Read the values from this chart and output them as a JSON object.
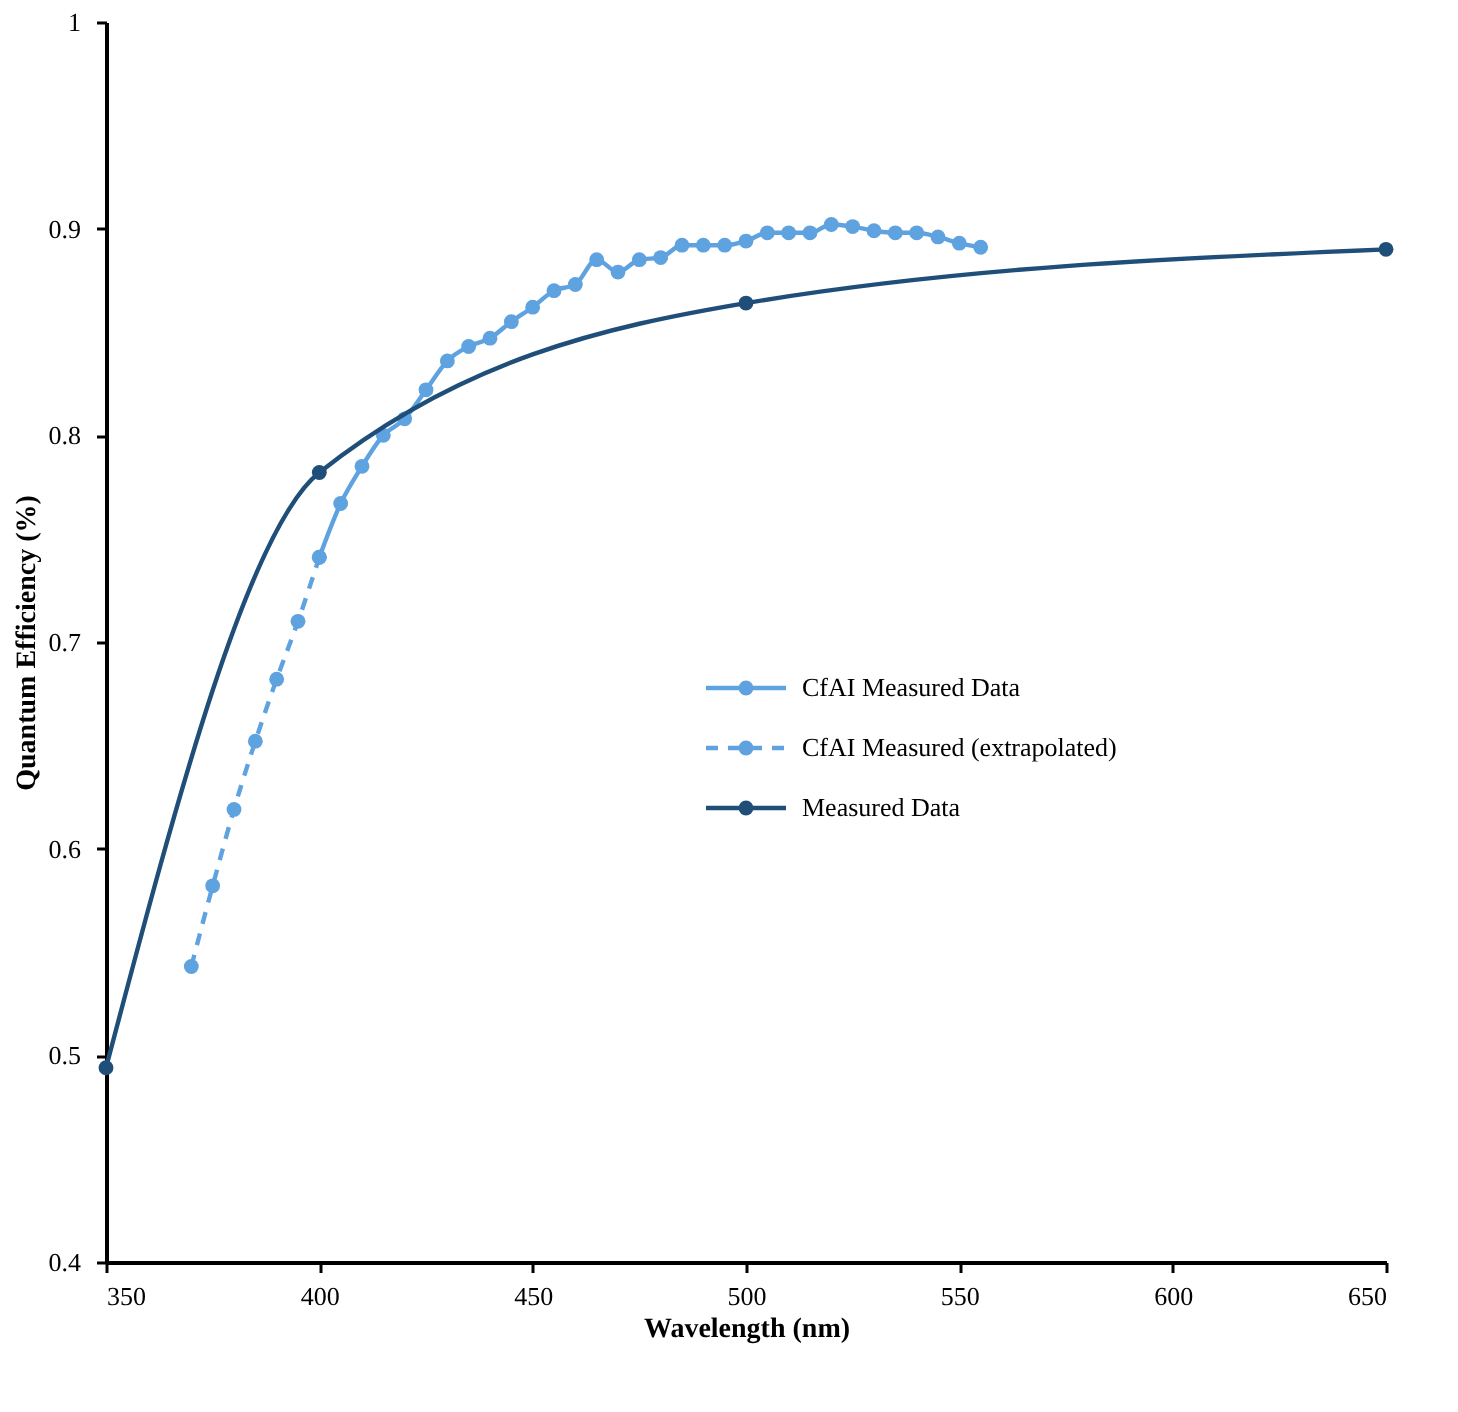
{
  "chart_data": {
    "type": "line",
    "xlabel": "Wavelength (nm)",
    "ylabel": "Quantum Efficiency (%)",
    "xlim": [
      350,
      650
    ],
    "ylim": [
      0.4,
      1
    ],
    "xticks": [
      350,
      400,
      450,
      500,
      550,
      600,
      650
    ],
    "yticks": [
      {
        "value": 0.4,
        "label": "0.4"
      },
      {
        "value": 0.5,
        "label": "0.5"
      },
      {
        "value": 0.6,
        "label": "0.6"
      },
      {
        "value": 0.7,
        "label": "0.7"
      },
      {
        "value": 0.8,
        "label": "0.8"
      },
      {
        "value": 0.9,
        "label": "0.9"
      },
      {
        "value": 1,
        "label": "1"
      }
    ],
    "grid": false,
    "legend": "right",
    "marker": "circle",
    "series": [
      {
        "name": "CfAI Measured Data",
        "color": "#5fa2e0",
        "line_style": "solid",
        "x": [
          400,
          405,
          410,
          415,
          420,
          425,
          430,
          435,
          440,
          445,
          450,
          455,
          460,
          465,
          470,
          475,
          480,
          485,
          490,
          495,
          500,
          505,
          510,
          515,
          520,
          525,
          530,
          535,
          540,
          545,
          550,
          555
        ],
        "values": [
          0.741,
          0.767,
          0.785,
          0.8,
          0.808,
          0.822,
          0.836,
          0.843,
          0.847,
          0.855,
          0.862,
          0.87,
          0.873,
          0.885,
          0.879,
          0.885,
          0.886,
          0.892,
          0.892,
          0.892,
          0.894,
          0.898,
          0.898,
          0.898,
          0.902,
          0.901,
          0.899,
          0.898,
          0.898,
          0.896,
          0.893,
          0.891
        ]
      },
      {
        "name": "CfAI Measured (extrapolated)",
        "color": "#5fa2e0",
        "line_style": "dashed",
        "x": [
          370,
          375,
          380,
          385,
          390,
          395,
          400
        ],
        "values": [
          0.543,
          0.582,
          0.619,
          0.652,
          0.682,
          0.71,
          0.741
        ]
      },
      {
        "name": "Measured Data",
        "color": "#1f4e79",
        "line_style": "solid",
        "x": [
          350,
          400,
          500,
          650
        ],
        "values": [
          0.494,
          0.782,
          0.864,
          0.89
        ]
      }
    ]
  }
}
